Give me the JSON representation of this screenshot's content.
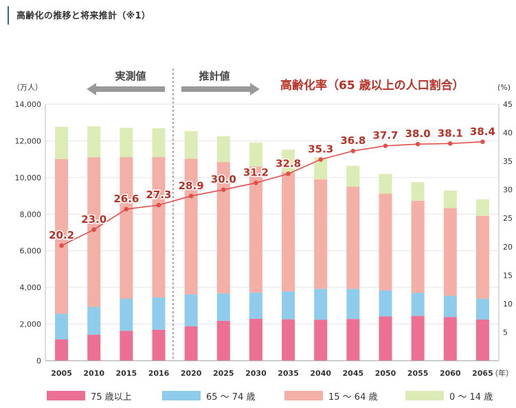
{
  "page": {
    "title": "高齢化の推移と将来推計（※1）"
  },
  "chart_data": {
    "type": "bar",
    "stacked": true,
    "categories": [
      "2005",
      "2010",
      "2015",
      "2016",
      "2020",
      "2025",
      "2030",
      "2035",
      "2040",
      "2045",
      "2050",
      "2055",
      "2060",
      "2065"
    ],
    "x_unit_label": "（年）",
    "left_axis": {
      "unit_label": "（万人）",
      "ylim": [
        0,
        14000
      ],
      "ticks": [
        "0",
        "2,000",
        "4,000",
        "6,000",
        "8,000",
        "10,000",
        "12,000",
        "14,000"
      ]
    },
    "right_axis": {
      "unit_label": "(%)",
      "ylim": [
        0,
        45
      ],
      "ticks": [
        "5",
        "10",
        "15",
        "20",
        "25",
        "30",
        "35",
        "40",
        "45"
      ]
    },
    "grid": true,
    "series": [
      {
        "name": "75 歳以上",
        "color": "#ec6f94",
        "values": [
          1160,
          1419,
          1632,
          1691,
          1872,
          2180,
          2288,
          2260,
          2239,
          2277,
          2417,
          2446,
          2387,
          2248
        ]
      },
      {
        "name": "65 ～ 74 歳",
        "color": "#8fcbea",
        "values": [
          1407,
          1517,
          1755,
          1768,
          1747,
          1497,
          1428,
          1522,
          1681,
          1643,
          1424,
          1258,
          1154,
          1133
        ]
      },
      {
        "name": "15 ～ 64 歳",
        "color": "#f4afa6",
        "values": [
          8442,
          8173,
          7728,
          7656,
          7406,
          7170,
          6875,
          6494,
          5978,
          5584,
          5275,
          5028,
          4793,
          4529
        ]
      },
      {
        "name": "0 ～ 14 歳",
        "color": "#ddebb7",
        "values": [
          1759,
          1684,
          1595,
          1578,
          1507,
          1407,
          1321,
          1246,
          1194,
          1138,
          1077,
          1012,
          951,
          898
        ]
      }
    ],
    "line": {
      "name": "高齢化率（65 歳以上の人口割合）",
      "axis": "right",
      "color": "#e04f4c",
      "label_color": "#b73227",
      "values": [
        20.2,
        23.0,
        26.6,
        27.3,
        28.9,
        30.0,
        31.2,
        32.8,
        35.3,
        36.8,
        37.7,
        38.0,
        38.1,
        38.4
      ],
      "labels": [
        "20.2",
        "23.0",
        "26.6",
        "27.3",
        "28.9",
        "30.0",
        "31.2",
        "32.8",
        "35.3",
        "36.8",
        "37.7",
        "38.0",
        "38.1",
        "38.4"
      ]
    },
    "annotations": {
      "actual_label": "実測値",
      "projected_label": "推計値"
    }
  }
}
